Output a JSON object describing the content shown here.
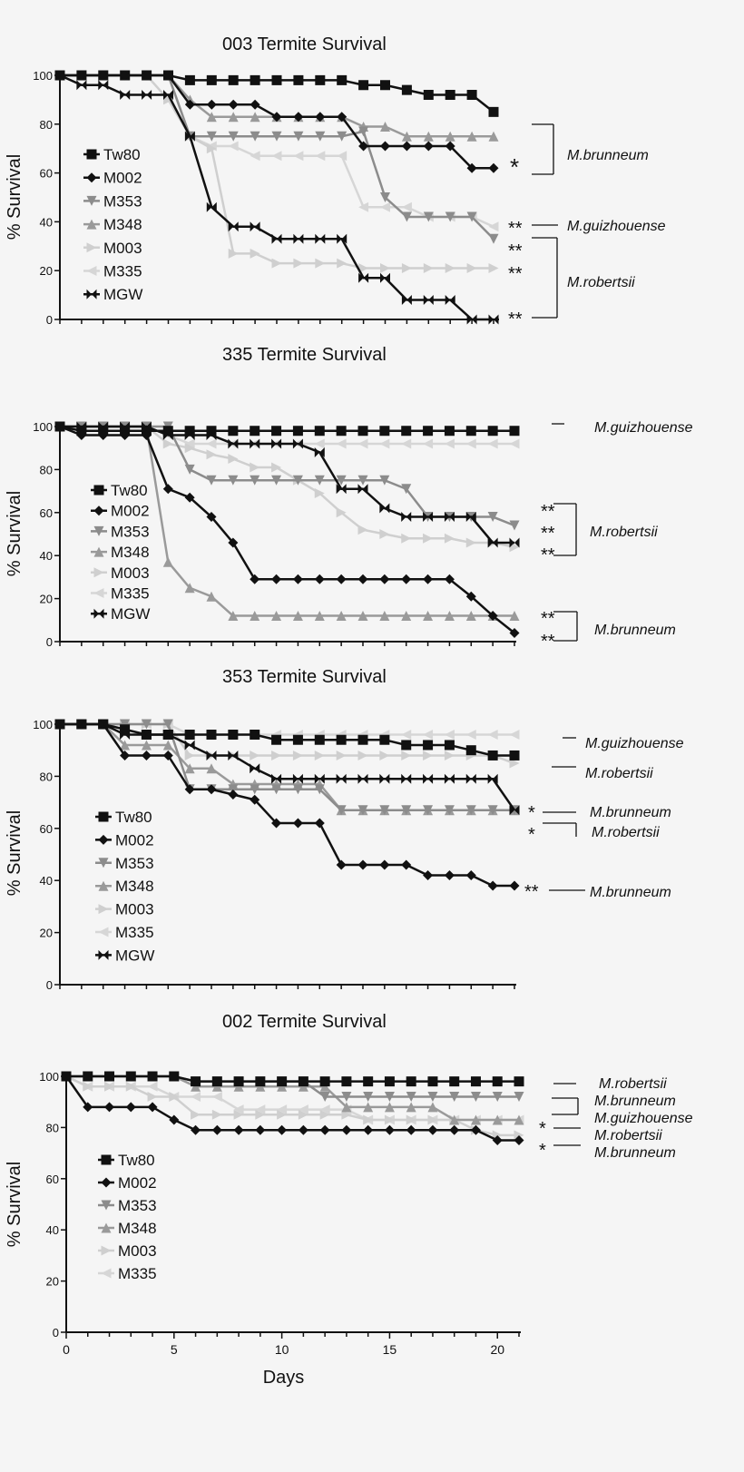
{
  "series_styles": {
    "Tw80": {
      "color": "#111111",
      "marker": "square"
    },
    "M002": {
      "color": "#111111",
      "marker": "diamond"
    },
    "M353": {
      "color": "#8c8c8c",
      "marker": "triangle-down"
    },
    "M348": {
      "color": "#9a9a9a",
      "marker": "triangle-up"
    },
    "M003": {
      "color": "#cfcfcf",
      "marker": "triangle-right"
    },
    "M335": {
      "color": "#d6d6d6",
      "marker": "triangle-left"
    },
    "MGW": {
      "color": "#111111",
      "marker": "bowtie"
    }
  },
  "chart_data": [
    {
      "type": "line",
      "title": "003 Termite Survival",
      "ylabel": "% Survival",
      "xlabel": "",
      "ylim": [
        0,
        100
      ],
      "yticks": [
        "0",
        "20",
        "40",
        "60",
        "80",
        "100"
      ],
      "xlim": [
        0,
        20
      ],
      "legend": "left",
      "series": [
        {
          "name": "Tw80",
          "values": [
            100,
            100,
            100,
            100,
            100,
            100,
            98,
            98,
            98,
            98,
            98,
            98,
            98,
            98,
            96,
            96,
            94,
            92,
            92,
            92,
            85
          ]
        },
        {
          "name": "M002",
          "values": [
            100,
            100,
            100,
            100,
            100,
            100,
            88,
            88,
            88,
            88,
            83,
            83,
            83,
            83,
            71,
            71,
            71,
            71,
            71,
            62,
            62
          ]
        },
        {
          "name": "M353",
          "values": [
            100,
            100,
            100,
            100,
            100,
            100,
            75,
            75,
            75,
            75,
            75,
            75,
            75,
            75,
            77,
            50,
            42,
            42,
            42,
            42,
            33
          ]
        },
        {
          "name": "M348",
          "values": [
            100,
            100,
            100,
            100,
            100,
            100,
            90,
            83,
            83,
            83,
            83,
            83,
            83,
            83,
            79,
            79,
            75,
            75,
            75,
            75,
            75
          ]
        },
        {
          "name": "M003",
          "values": [
            100,
            100,
            100,
            100,
            100,
            90,
            75,
            70,
            27,
            27,
            23,
            23,
            23,
            23,
            21,
            21,
            21,
            21,
            21,
            21,
            21
          ]
        },
        {
          "name": "M335",
          "values": [
            100,
            100,
            100,
            100,
            100,
            100,
            75,
            71,
            71,
            67,
            67,
            67,
            67,
            67,
            46,
            46,
            46,
            42,
            42,
            42,
            38
          ]
        },
        {
          "name": "MGW",
          "values": [
            100,
            96,
            96,
            92,
            92,
            92,
            75,
            46,
            38,
            38,
            33,
            33,
            33,
            33,
            17,
            17,
            8,
            8,
            8,
            0,
            0
          ]
        }
      ],
      "annotations": [
        "*",
        "M.brunneum",
        "**",
        "M.guizhouense",
        "**",
        "**",
        "**",
        "M.robertsii"
      ]
    },
    {
      "type": "line",
      "title": "335 Termite Survival",
      "ylabel": "% Survival",
      "xlabel": "",
      "ylim": [
        0,
        100
      ],
      "yticks": [
        "0",
        "20",
        "40",
        "60",
        "80",
        "100"
      ],
      "xlim": [
        0,
        21
      ],
      "legend": "left",
      "series": [
        {
          "name": "Tw80",
          "values": [
            100,
            98,
            98,
            98,
            98,
            98,
            98,
            98,
            98,
            98,
            98,
            98,
            98,
            98,
            98,
            98,
            98,
            98,
            98,
            98,
            98,
            98
          ]
        },
        {
          "name": "M002",
          "values": [
            100,
            96,
            96,
            96,
            96,
            71,
            67,
            58,
            46,
            29,
            29,
            29,
            29,
            29,
            29,
            29,
            29,
            29,
            29,
            21,
            12,
            4
          ]
        },
        {
          "name": "M353",
          "values": [
            100,
            100,
            100,
            100,
            100,
            100,
            80,
            75,
            75,
            75,
            75,
            75,
            75,
            75,
            75,
            75,
            71,
            58,
            58,
            58,
            58,
            54
          ]
        },
        {
          "name": "M348",
          "values": [
            100,
            100,
            100,
            100,
            100,
            37,
            25,
            21,
            12,
            12,
            12,
            12,
            12,
            12,
            12,
            12,
            12,
            12,
            12,
            12,
            12,
            12
          ]
        },
        {
          "name": "M003",
          "values": [
            100,
            100,
            100,
            100,
            100,
            92,
            90,
            87,
            85,
            81,
            81,
            75,
            69,
            60,
            52,
            50,
            48,
            48,
            48,
            46,
            46,
            44
          ]
        },
        {
          "name": "M335",
          "values": [
            100,
            100,
            100,
            100,
            100,
            96,
            92,
            92,
            92,
            92,
            92,
            92,
            92,
            92,
            92,
            92,
            92,
            92,
            92,
            92,
            92,
            92
          ]
        },
        {
          "name": "MGW",
          "values": [
            100,
            100,
            100,
            100,
            100,
            96,
            96,
            96,
            92,
            92,
            92,
            92,
            88,
            71,
            71,
            62,
            58,
            58,
            58,
            58,
            46,
            46
          ]
        }
      ],
      "annotations": [
        "M.guizhouense",
        "**",
        "**",
        "**",
        "M.robertsii",
        "**",
        "**",
        "M.brunneum"
      ]
    },
    {
      "type": "line",
      "title": "353 Termite Survival",
      "ylabel": "% Survival",
      "xlabel": "",
      "ylim": [
        0,
        100
      ],
      "yticks": [
        "0",
        "20",
        "40",
        "60",
        "80",
        "100"
      ],
      "xlim": [
        0,
        21
      ],
      "legend": "left",
      "series": [
        {
          "name": "Tw80",
          "values": [
            100,
            100,
            100,
            98,
            96,
            96,
            96,
            96,
            96,
            96,
            94,
            94,
            94,
            94,
            94,
            94,
            92,
            92,
            92,
            90,
            88,
            88
          ]
        },
        {
          "name": "M002",
          "values": [
            100,
            100,
            100,
            88,
            88,
            88,
            75,
            75,
            73,
            71,
            62,
            62,
            62,
            46,
            46,
            46,
            46,
            42,
            42,
            42,
            38,
            38
          ]
        },
        {
          "name": "M353",
          "values": [
            100,
            100,
            100,
            100,
            100,
            100,
            75,
            75,
            75,
            75,
            75,
            75,
            75,
            67,
            67,
            67,
            67,
            67,
            67,
            67,
            67,
            67
          ]
        },
        {
          "name": "M348",
          "values": [
            100,
            100,
            100,
            92,
            92,
            92,
            83,
            83,
            77,
            77,
            77,
            77,
            77,
            67,
            67,
            67,
            67,
            67,
            67,
            67,
            67,
            67
          ]
        },
        {
          "name": "M003",
          "values": [
            100,
            100,
            100,
            100,
            100,
            100,
            88,
            88,
            88,
            88,
            88,
            88,
            88,
            88,
            88,
            88,
            88,
            88,
            88,
            88,
            88,
            85
          ]
        },
        {
          "name": "M335",
          "values": [
            100,
            100,
            100,
            100,
            100,
            100,
            96,
            96,
            96,
            96,
            96,
            96,
            96,
            96,
            96,
            96,
            96,
            96,
            96,
            96,
            96,
            96
          ]
        },
        {
          "name": "MGW",
          "values": [
            100,
            100,
            100,
            96,
            96,
            96,
            92,
            88,
            88,
            83,
            79,
            79,
            79,
            79,
            79,
            79,
            79,
            79,
            79,
            79,
            79,
            67
          ]
        }
      ],
      "annotations": [
        "M.guizhouense",
        "M.robertsii",
        "*",
        "*",
        "M.brunneum",
        "M.robertsii",
        "**",
        "M.brunneum"
      ]
    },
    {
      "type": "line",
      "title": "002 Termite Survival",
      "ylabel": "% Survival",
      "xlabel": "Days",
      "ylim": [
        0,
        100
      ],
      "yticks": [
        "0",
        "20",
        "40",
        "60",
        "80",
        "100"
      ],
      "xlim": [
        0,
        21
      ],
      "xticks": [
        "0",
        "5",
        "10",
        "15",
        "20"
      ],
      "legend": "left",
      "series": [
        {
          "name": "Tw80",
          "values": [
            100,
            100,
            100,
            100,
            100,
            100,
            98,
            98,
            98,
            98,
            98,
            98,
            98,
            98,
            98,
            98,
            98,
            98,
            98,
            98,
            98,
            98
          ]
        },
        {
          "name": "M002",
          "values": [
            100,
            88,
            88,
            88,
            88,
            83,
            79,
            79,
            79,
            79,
            79,
            79,
            79,
            79,
            79,
            79,
            79,
            79,
            79,
            79,
            75,
            75
          ]
        },
        {
          "name": "M353",
          "values": [
            100,
            100,
            100,
            100,
            100,
            100,
            98,
            98,
            98,
            98,
            98,
            98,
            92,
            92,
            92,
            92,
            92,
            92,
            92,
            92,
            92,
            92
          ]
        },
        {
          "name": "M348",
          "values": [
            100,
            100,
            100,
            100,
            100,
            100,
            96,
            96,
            96,
            96,
            96,
            96,
            96,
            88,
            88,
            88,
            88,
            88,
            83,
            83,
            83,
            83
          ]
        },
        {
          "name": "M003",
          "values": [
            100,
            96,
            96,
            96,
            92,
            92,
            85,
            85,
            85,
            85,
            85,
            85,
            85,
            85,
            83,
            83,
            83,
            83,
            83,
            79,
            77,
            77
          ]
        },
        {
          "name": "M335",
          "values": [
            100,
            96,
            96,
            96,
            96,
            92,
            92,
            92,
            87,
            87,
            87,
            87,
            87,
            87,
            83,
            83,
            83,
            83,
            83,
            83,
            83,
            83
          ]
        }
      ],
      "annotations": [
        "M.robertsii",
        "M.brunneum",
        "M.guizhouense",
        "*",
        "*",
        "M.robertsii",
        "M.brunneum"
      ]
    }
  ]
}
